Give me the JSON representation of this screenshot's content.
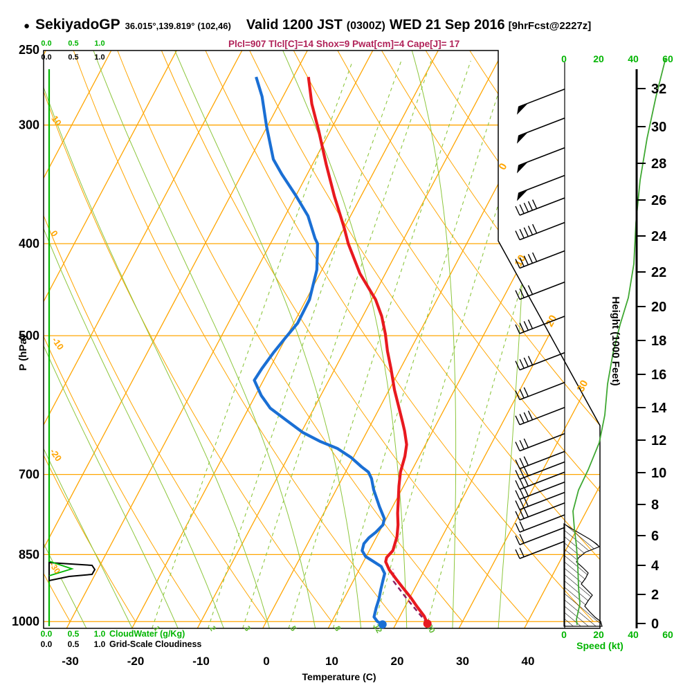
{
  "header": {
    "bullet": "●",
    "station": "SekiyadoGP",
    "coords": "36.015°,139.819°",
    "grid_point": "(102,46)",
    "valid_prefix": "Valid 1200 JST",
    "utc_time": "(0300Z)",
    "valid_date": "WED 21 Sep 2016",
    "forecast_tag": "[9hrFcst@2227z]",
    "stats": "Plcl=907 Tlcl[C]=14 Shox=9 Pwat[cm]=4 Cape[J]= 17"
  },
  "axes": {
    "pressure": {
      "label": "P (hPa)",
      "ticks": [
        250,
        300,
        400,
        500,
        700,
        850,
        1000
      ]
    },
    "temperature": {
      "label": "Temperature (C)",
      "ticks": [
        -30,
        -20,
        -10,
        0,
        10,
        20,
        30,
        40
      ]
    },
    "height": {
      "label": "Height (1000 Feet)",
      "ticks": [
        0,
        2,
        4,
        6,
        8,
        10,
        12,
        14,
        16,
        18,
        20,
        22,
        24,
        26,
        28,
        30,
        32
      ]
    },
    "speed": {
      "label": "Speed (kt)",
      "ticks": [
        0,
        20,
        40,
        60
      ]
    },
    "cloudwater": {
      "label": "CloudWater (g/Kg)",
      "scale": [
        "0.0",
        "0.5",
        "1.0"
      ]
    },
    "gridscale": {
      "label": "Grid-Scale Cloudiness",
      "scale": [
        "0.0",
        "0.5",
        "1.0"
      ]
    }
  },
  "chart_data": {
    "type": "line",
    "subtype": "skewt_log_p_sounding",
    "pressure_range_hPa": [
      250,
      1016
    ],
    "temperature_range_C": [
      -40,
      45
    ],
    "isotherm_labels_C": [
      0,
      10,
      20,
      30
    ],
    "dry_adiabat_labels_C": [
      10,
      0,
      -10,
      -20,
      -30
    ],
    "mixing_ratio_labels_gkg": [
      1,
      2,
      3,
      5,
      8,
      12,
      20
    ],
    "temperature_profile": [
      [
        267,
        -37.7
      ],
      [
        285,
        -35.0
      ],
      [
        304,
        -31.8
      ],
      [
        330,
        -27.9
      ],
      [
        357,
        -24.0
      ],
      [
        385,
        -20.0
      ],
      [
        400,
        -18.1
      ],
      [
        430,
        -13.9
      ],
      [
        458,
        -9.4
      ],
      [
        477,
        -7.1
      ],
      [
        498,
        -5.1
      ],
      [
        519,
        -3.4
      ],
      [
        542,
        -1.4
      ],
      [
        570,
        0.8
      ],
      [
        596,
        3.0
      ],
      [
        617,
        4.7
      ],
      [
        630,
        5.7
      ],
      [
        651,
        7.1
      ],
      [
        670,
        7.8
      ],
      [
        696,
        8.4
      ],
      [
        720,
        9.3
      ],
      [
        744,
        10.3
      ],
      [
        769,
        11.3
      ],
      [
        791,
        12.3
      ],
      [
        814,
        13.1
      ],
      [
        842,
        13.6
      ],
      [
        856,
        13.2
      ],
      [
        865,
        13.4
      ],
      [
        882,
        14.6
      ],
      [
        902,
        16.4
      ],
      [
        923,
        18.3
      ],
      [
        943,
        20.1
      ],
      [
        964,
        21.8
      ],
      [
        987,
        23.7
      ],
      [
        1005,
        24.8
      ]
    ],
    "dewpoint_profile": [
      [
        267,
        -45.7
      ],
      [
        280,
        -43.2
      ],
      [
        301,
        -40.1
      ],
      [
        326,
        -36.4
      ],
      [
        338,
        -33.9
      ],
      [
        356,
        -30.0
      ],
      [
        374,
        -26.5
      ],
      [
        395,
        -23.6
      ],
      [
        400,
        -22.8
      ],
      [
        426,
        -20.8
      ],
      [
        458,
        -19.5
      ],
      [
        485,
        -19.4
      ],
      [
        503,
        -20.1
      ],
      [
        521,
        -20.7
      ],
      [
        542,
        -21.2
      ],
      [
        557,
        -21.4
      ],
      [
        578,
        -19.1
      ],
      [
        596,
        -16.7
      ],
      [
        613,
        -13.4
      ],
      [
        632,
        -9.8
      ],
      [
        646,
        -6.4
      ],
      [
        657,
        -3.2
      ],
      [
        672,
        -0.3
      ],
      [
        687,
        2.0
      ],
      [
        696,
        3.5
      ],
      [
        707,
        4.5
      ],
      [
        726,
        5.7
      ],
      [
        757,
        8.0
      ],
      [
        779,
        9.7
      ],
      [
        791,
        10.0
      ],
      [
        805,
        9.5
      ],
      [
        816,
        8.9
      ],
      [
        828,
        8.6
      ],
      [
        842,
        8.9
      ],
      [
        854,
        9.9
      ],
      [
        865,
        11.6
      ],
      [
        875,
        13.1
      ],
      [
        890,
        14.2
      ],
      [
        905,
        14.5
      ],
      [
        925,
        14.9
      ],
      [
        947,
        15.4
      ],
      [
        968,
        15.7
      ],
      [
        989,
        16.1
      ],
      [
        1000,
        17.0
      ],
      [
        1007,
        18.0
      ]
    ],
    "parcel_path": [
      [
        1005,
        24.8
      ],
      [
        975,
        22.2
      ],
      [
        940,
        19.1
      ],
      [
        907,
        16.2
      ],
      [
        880,
        15.1
      ]
    ],
    "wind_speed_profile_kt": [
      [
        255,
        58.8
      ],
      [
        280,
        53.2
      ],
      [
        310,
        48.0
      ],
      [
        343,
        44.0
      ],
      [
        380,
        41.6
      ],
      [
        420,
        40.4
      ],
      [
        456,
        37.2
      ],
      [
        487,
        32.4
      ],
      [
        521,
        28.4
      ],
      [
        562,
        25.2
      ],
      [
        606,
        23.6
      ],
      [
        648,
        20.4
      ],
      [
        692,
        14.0
      ],
      [
        727,
        8.4
      ],
      [
        765,
        5.2
      ],
      [
        798,
        6.0
      ],
      [
        832,
        7.2
      ],
      [
        875,
        8.0
      ],
      [
        919,
        8.4
      ],
      [
        958,
        9.2
      ],
      [
        995,
        7.2
      ],
      [
        1008,
        7.6
      ]
    ],
    "wind_barbs": [
      {
        "p": 275,
        "flags": 1,
        "ticks": 0
      },
      {
        "p": 295,
        "flags": 1,
        "ticks": 0
      },
      {
        "p": 317,
        "flags": 1,
        "ticks": 0
      },
      {
        "p": 339,
        "flags": 1,
        "ticks": 0
      },
      {
        "p": 358,
        "flags": 0,
        "ticks": 5
      },
      {
        "p": 380,
        "flags": 0,
        "ticks": 5
      },
      {
        "p": 407,
        "flags": 0,
        "ticks": 5
      },
      {
        "p": 439,
        "flags": 0,
        "ticks": 4
      },
      {
        "p": 477,
        "flags": 0,
        "ticks": 4
      },
      {
        "p": 521,
        "flags": 0,
        "ticks": 4
      },
      {
        "p": 560,
        "flags": 0,
        "ticks": 3
      },
      {
        "p": 595,
        "flags": 0,
        "ticks": 4
      },
      {
        "p": 634,
        "flags": 0,
        "ticks": 3
      },
      {
        "p": 662,
        "flags": 0,
        "ticks": 3
      },
      {
        "p": 679,
        "flags": 0,
        "ticks": 3
      },
      {
        "p": 696,
        "flags": 0,
        "ticks": 3
      },
      {
        "p": 713,
        "flags": 0,
        "ticks": 3
      },
      {
        "p": 731,
        "flags": 0,
        "ticks": 3
      },
      {
        "p": 750,
        "flags": 0,
        "ticks": 3
      },
      {
        "p": 772,
        "flags": 0,
        "ticks": 2
      },
      {
        "p": 796,
        "flags": 0,
        "ticks": 2
      },
      {
        "p": 823,
        "flags": 0,
        "ticks": 2
      }
    ]
  },
  "colors": {
    "grid_orange": "#ffa500",
    "adiabat_green": "#8cc63c",
    "axis_green": "#00b400",
    "speed_green": "#3fa832",
    "temperature_red": "#e8191f",
    "dewpoint_blue": "#1a6fd4",
    "parcel_magenta": "#8b2066",
    "stats_magenta": "#b02258",
    "frame_black": "#000000"
  }
}
